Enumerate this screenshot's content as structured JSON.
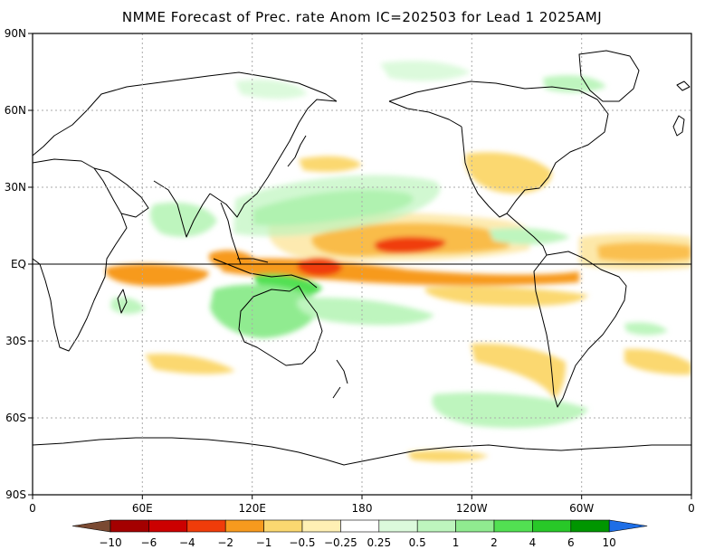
{
  "title": "NMME Forecast of Prec. rate Anom IC=202503 for Lead 1 2025AMJ",
  "axes": {
    "lat_labels": [
      "90N",
      "60N",
      "30N",
      "EQ",
      "30S",
      "60S",
      "90S"
    ],
    "lon_labels": [
      "0",
      "60E",
      "120E",
      "180",
      "120W",
      "60W",
      "0"
    ]
  },
  "colorbar": {
    "boundaries": [
      "-10",
      "-6",
      "-4",
      "-2",
      "-1",
      "-0.5",
      "-0.25",
      "0.25",
      "0.5",
      "1",
      "2",
      "4",
      "6",
      "10"
    ],
    "colors": [
      "#7a4a32",
      "#a40000",
      "#cc0000",
      "#f03c0a",
      "#f79a1e",
      "#fbd870",
      "#fff0b4",
      "#ffffff",
      "#dcfadc",
      "#bef5be",
      "#90eb90",
      "#52e052",
      "#28c828",
      "#009600",
      "#1e6ee6"
    ]
  },
  "colors": {
    "frame": "#000000",
    "grid": "#aaaaaa",
    "land_outline": "#000000"
  }
}
